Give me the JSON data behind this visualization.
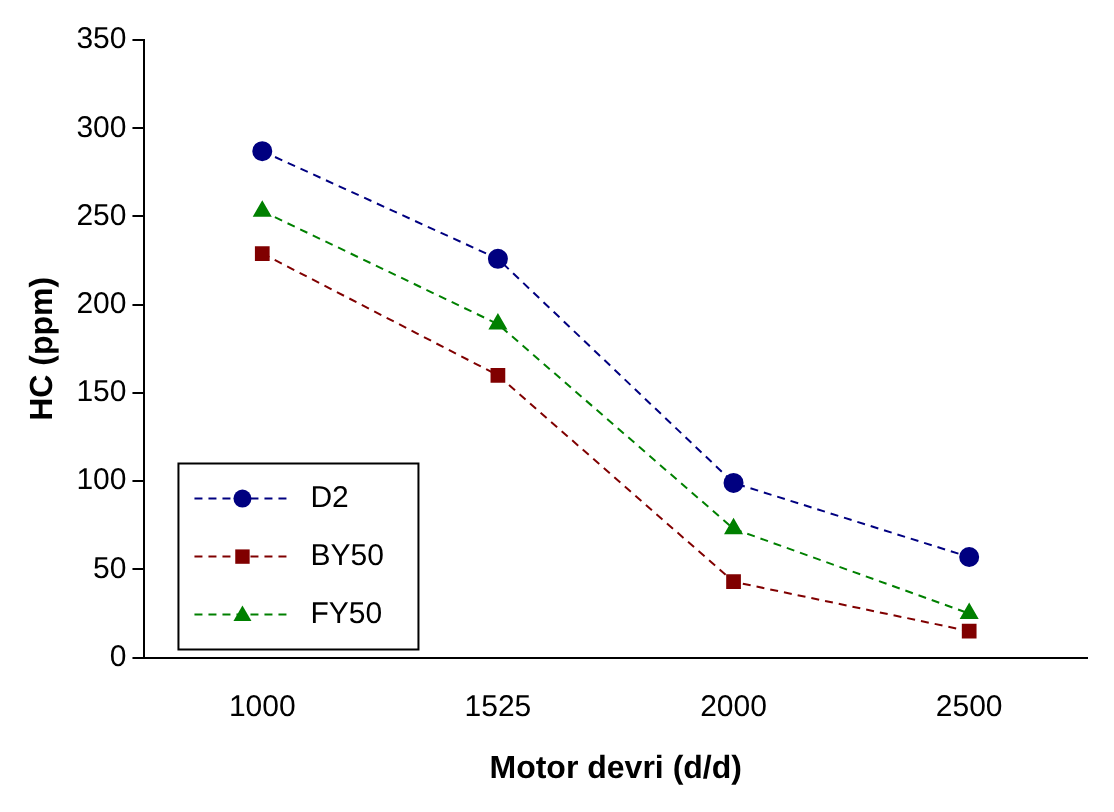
{
  "chart_data": {
    "type": "line",
    "xlabel": "Motor devri (d/d)",
    "ylabel": "HC (ppm)",
    "categories": [
      "1000",
      "1525",
      "2000",
      "2500"
    ],
    "series": [
      {
        "name": "D2",
        "color": "#000080",
        "marker": "circle",
        "values": [
          287,
          226,
          99,
          57
        ]
      },
      {
        "name": "BY50",
        "color": "#800000",
        "marker": "square",
        "values": [
          229,
          160,
          43,
          15
        ]
      },
      {
        "name": "FY50",
        "color": "#008000",
        "marker": "triangle",
        "values": [
          253,
          189,
          73,
          25
        ]
      }
    ],
    "ylim": [
      0,
      350
    ],
    "yticks": [
      0,
      50,
      100,
      150,
      200,
      250,
      300,
      350
    ],
    "grid": false,
    "legend": "bottom left",
    "line_style": "dashed"
  }
}
